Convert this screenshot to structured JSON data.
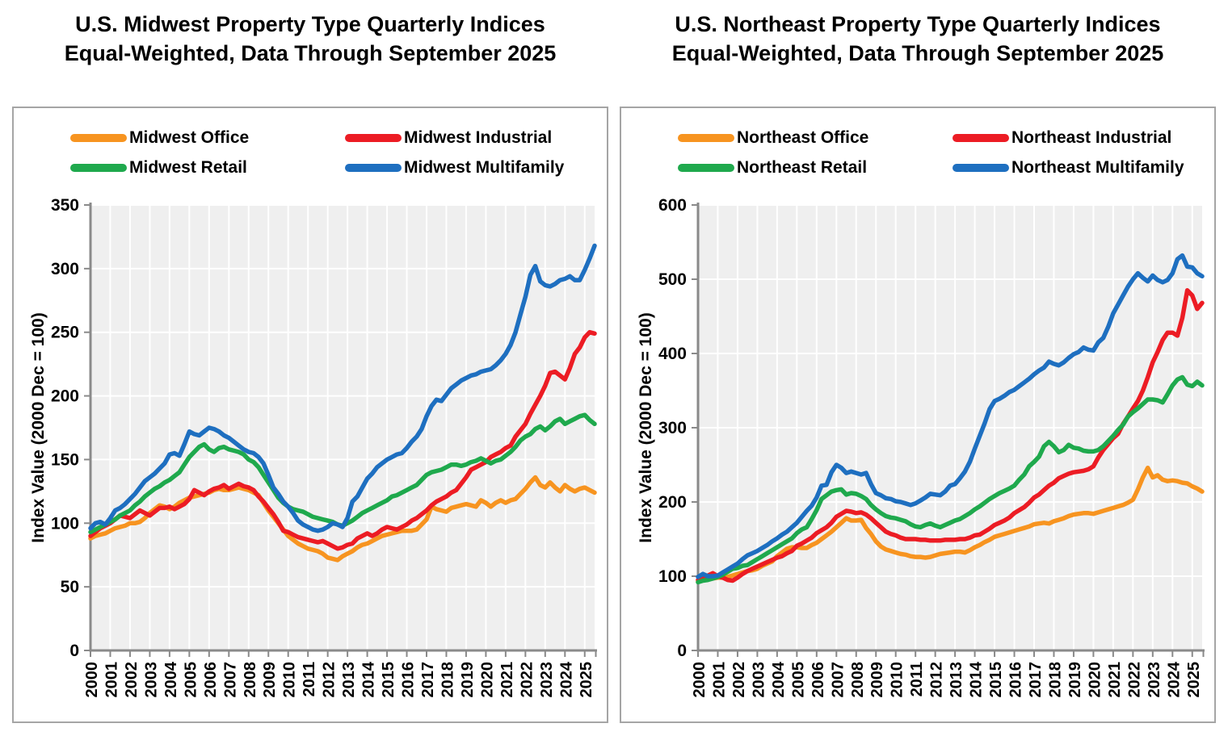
{
  "colors": {
    "plot_bg": "#efefef",
    "gridline": "#ffffff",
    "axis": "#8a8a8a",
    "text": "#000000",
    "panel_border": "#a5a5a5"
  },
  "chart_data": [
    {
      "type": "line",
      "title_line1": "U.S. Midwest Property Type Quarterly Indices",
      "title_line2": "Equal-Weighted, Data Through September 2025",
      "ylabel": "Index Value (2000 Dec = 100)",
      "ylim": [
        0,
        350
      ],
      "ystep": 50,
      "grid": "on",
      "legend_position": "top",
      "x_start": 2000,
      "x_end_label": "2025",
      "points_per_year": 4,
      "x_tick_labels": [
        "2000",
        "2001",
        "2002",
        "2003",
        "2004",
        "2005",
        "2006",
        "2007",
        "2008",
        "2009",
        "2010",
        "2011",
        "2012",
        "2013",
        "2014",
        "2015",
        "2016",
        "2017",
        "2018",
        "2019",
        "2020",
        "2021",
        "2022",
        "2023",
        "2024",
        "2025"
      ],
      "series": [
        {
          "name": "Midwest Office",
          "color": "#f79420",
          "values": [
            88,
            90,
            91,
            92,
            94,
            96,
            97,
            98,
            100,
            100,
            101,
            104,
            108,
            111,
            114,
            113,
            111,
            113,
            116,
            118,
            120,
            121,
            122,
            123,
            124,
            126,
            127,
            126,
            126,
            127,
            128,
            127,
            126,
            124,
            122,
            116,
            110,
            105,
            100,
            95,
            90,
            87,
            84,
            82,
            80,
            79,
            78,
            76,
            73,
            72,
            71,
            74,
            76,
            78,
            81,
            83,
            84,
            86,
            88,
            90,
            91,
            92,
            93,
            94,
            94,
            94,
            95,
            99,
            103,
            113,
            111,
            110,
            109,
            112,
            113,
            114,
            115,
            114,
            113,
            118,
            116,
            113,
            116,
            118,
            116,
            118,
            119,
            123,
            127,
            132,
            136,
            130,
            128,
            132,
            128,
            125,
            130,
            127,
            125,
            127,
            128,
            126,
            124
          ]
        },
        {
          "name": "Midwest Industrial",
          "color": "#ec1c24",
          "values": [
            90,
            93,
            96,
            98,
            100,
            103,
            106,
            105,
            104,
            107,
            110,
            108,
            106,
            109,
            112,
            112,
            113,
            111,
            113,
            115,
            119,
            126,
            124,
            122,
            125,
            127,
            128,
            130,
            127,
            129,
            131,
            129,
            128,
            126,
            121,
            117,
            112,
            107,
            101,
            94,
            93,
            91,
            89,
            88,
            87,
            86,
            85,
            86,
            84,
            82,
            80,
            81,
            83,
            84,
            88,
            90,
            92,
            90,
            92,
            95,
            97,
            96,
            95,
            97,
            99,
            102,
            104,
            107,
            110,
            114,
            117,
            119,
            121,
            124,
            126,
            131,
            136,
            142,
            144,
            146,
            148,
            152,
            154,
            156,
            159,
            161,
            168,
            173,
            178,
            186,
            193,
            200,
            208,
            218,
            219,
            216,
            213,
            222,
            233,
            238,
            246,
            250,
            249
          ]
        },
        {
          "name": "Midwest Retail",
          "color": "#1fa94d",
          "values": [
            93,
            95,
            97,
            99,
            101,
            103,
            106,
            108,
            110,
            114,
            117,
            121,
            124,
            127,
            129,
            132,
            134,
            137,
            140,
            146,
            152,
            156,
            160,
            162,
            158,
            156,
            159,
            160,
            158,
            157,
            156,
            154,
            150,
            148,
            144,
            138,
            132,
            126,
            120,
            116,
            113,
            111,
            110,
            109,
            107,
            105,
            104,
            103,
            102,
            101,
            99,
            98,
            100,
            102,
            105,
            108,
            110,
            112,
            114,
            116,
            118,
            121,
            122,
            124,
            126,
            128,
            130,
            134,
            138,
            140,
            141,
            142,
            144,
            146,
            146,
            145,
            146,
            148,
            149,
            151,
            149,
            147,
            149,
            150,
            153,
            156,
            160,
            165,
            168,
            170,
            174,
            176,
            173,
            176,
            180,
            182,
            178,
            180,
            182,
            184,
            185,
            181,
            178
          ]
        },
        {
          "name": "Midwest Multifamily",
          "color": "#1e6fc0",
          "values": [
            96,
            100,
            101,
            99,
            104,
            110,
            112,
            115,
            119,
            123,
            128,
            133,
            136,
            139,
            143,
            147,
            154,
            155,
            153,
            162,
            172,
            170,
            169,
            172,
            175,
            174,
            172,
            169,
            167,
            164,
            161,
            158,
            156,
            155,
            152,
            147,
            138,
            128,
            123,
            117,
            113,
            108,
            102,
            99,
            97,
            95,
            94,
            95,
            97,
            100,
            99,
            97,
            104,
            117,
            121,
            128,
            135,
            139,
            144,
            147,
            150,
            152,
            154,
            155,
            159,
            164,
            168,
            174,
            184,
            192,
            197,
            196,
            201,
            206,
            209,
            212,
            214,
            216,
            217,
            219,
            220,
            221,
            224,
            228,
            233,
            240,
            250,
            264,
            278,
            295,
            302,
            290,
            287,
            286,
            288,
            291,
            292,
            294,
            291,
            291,
            299,
            308,
            318
          ]
        }
      ]
    },
    {
      "type": "line",
      "title_line1": "U.S. Northeast Property Type Quarterly Indices",
      "title_line2": "Equal-Weighted, Data Through September 2025",
      "ylabel": "Index Value (2000 Dec = 100)",
      "ylim": [
        0,
        600
      ],
      "ystep": 100,
      "grid": "on",
      "legend_position": "top",
      "x_start": 2000,
      "x_end_label": "2025",
      "points_per_year": 4,
      "x_tick_labels": [
        "2000",
        "2001",
        "2002",
        "2003",
        "2004",
        "2005",
        "2006",
        "2007",
        "2008",
        "2009",
        "2010",
        "2011",
        "2012",
        "2013",
        "2014",
        "2015",
        "2016",
        "2017",
        "2018",
        "2019",
        "2020",
        "2021",
        "2022",
        "2023",
        "2024",
        "2025"
      ],
      "series": [
        {
          "name": "Northeast Office",
          "color": "#f79420",
          "values": [
            93,
            95,
            96,
            97,
            98,
            98,
            99,
            101,
            103,
            105,
            107,
            108,
            110,
            114,
            117,
            120,
            127,
            132,
            137,
            139,
            139,
            138,
            138,
            142,
            145,
            150,
            155,
            160,
            166,
            172,
            178,
            175,
            175,
            176,
            165,
            157,
            147,
            140,
            136,
            134,
            132,
            130,
            129,
            127,
            126,
            126,
            125,
            126,
            128,
            130,
            131,
            132,
            133,
            133,
            132,
            135,
            139,
            142,
            146,
            149,
            153,
            155,
            157,
            159,
            161,
            163,
            165,
            167,
            170,
            171,
            172,
            171,
            174,
            176,
            178,
            181,
            183,
            184,
            185,
            185,
            184,
            186,
            188,
            190,
            192,
            194,
            196,
            199,
            203,
            217,
            233,
            246,
            233,
            236,
            230,
            228,
            229,
            228,
            226,
            225,
            221,
            218,
            214
          ]
        },
        {
          "name": "Northeast Industrial",
          "color": "#ec1c24",
          "values": [
            95,
            98,
            101,
            104,
            100,
            98,
            95,
            94,
            98,
            103,
            107,
            110,
            113,
            116,
            119,
            122,
            125,
            127,
            131,
            134,
            141,
            144,
            148,
            152,
            158,
            162,
            166,
            172,
            180,
            184,
            188,
            187,
            185,
            186,
            183,
            178,
            172,
            166,
            160,
            157,
            155,
            152,
            150,
            150,
            150,
            149,
            149,
            148,
            148,
            148,
            149,
            149,
            149,
            150,
            150,
            152,
            155,
            156,
            160,
            164,
            169,
            172,
            175,
            179,
            185,
            189,
            193,
            199,
            206,
            210,
            216,
            222,
            226,
            232,
            235,
            238,
            240,
            241,
            242,
            244,
            248,
            260,
            270,
            278,
            286,
            292,
            305,
            315,
            326,
            336,
            350,
            368,
            388,
            402,
            418,
            428,
            428,
            424,
            448,
            485,
            478,
            460,
            468
          ]
        },
        {
          "name": "Northeast Retail",
          "color": "#1fa94d",
          "values": [
            92,
            94,
            95,
            97,
            99,
            102,
            106,
            110,
            111,
            114,
            115,
            119,
            123,
            127,
            131,
            135,
            139,
            143,
            147,
            151,
            158,
            163,
            166,
            177,
            189,
            204,
            209,
            214,
            216,
            217,
            210,
            212,
            211,
            208,
            204,
            196,
            190,
            185,
            181,
            179,
            178,
            176,
            174,
            170,
            167,
            166,
            169,
            171,
            168,
            166,
            169,
            172,
            175,
            177,
            181,
            185,
            190,
            194,
            199,
            204,
            208,
            212,
            215,
            218,
            222,
            230,
            237,
            248,
            254,
            261,
            275,
            281,
            275,
            267,
            270,
            277,
            273,
            272,
            269,
            268,
            268,
            270,
            275,
            282,
            289,
            297,
            304,
            315,
            321,
            326,
            332,
            338,
            338,
            337,
            334,
            345,
            357,
            365,
            368,
            358,
            356,
            362,
            357
          ]
        },
        {
          "name": "Northeast Multifamily",
          "color": "#1e6fc0",
          "values": [
            99,
            103,
            100,
            100,
            101,
            105,
            109,
            113,
            117,
            123,
            128,
            131,
            134,
            138,
            142,
            147,
            151,
            156,
            160,
            166,
            172,
            180,
            188,
            195,
            206,
            222,
            223,
            240,
            250,
            246,
            239,
            241,
            239,
            237,
            239,
            224,
            212,
            209,
            205,
            204,
            201,
            200,
            198,
            196,
            198,
            202,
            206,
            211,
            210,
            209,
            214,
            222,
            224,
            232,
            241,
            254,
            272,
            289,
            306,
            325,
            336,
            339,
            343,
            348,
            351,
            356,
            361,
            366,
            372,
            377,
            381,
            389,
            386,
            384,
            388,
            394,
            399,
            402,
            408,
            405,
            404,
            415,
            421,
            436,
            454,
            466,
            478,
            490,
            500,
            508,
            502,
            497,
            505,
            499,
            496,
            499,
            508,
            527,
            532,
            517,
            516,
            508,
            504
          ]
        }
      ]
    }
  ]
}
